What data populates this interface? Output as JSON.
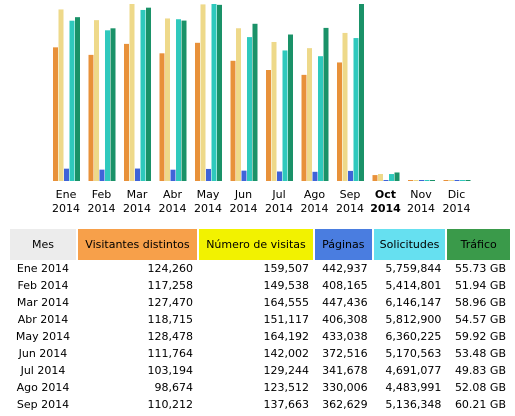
{
  "chart_data": {
    "type": "bar",
    "categories": [
      "Ene 2014",
      "Feb 2014",
      "Mar 2014",
      "Abr 2014",
      "May 2014",
      "Jun 2014",
      "Jul 2014",
      "Ago 2014",
      "Sep 2014",
      "Oct 2014",
      "Nov 2014",
      "Dic 2014"
    ],
    "series": [
      {
        "color": "#e8913a",
        "values": [
          124260,
          117258,
          127470,
          118715,
          128478,
          111764,
          103194,
          98674,
          110212,
          5500,
          0,
          0
        ]
      },
      {
        "color": "#eed98a",
        "values": [
          159507,
          149538,
          164555,
          151117,
          164192,
          142002,
          129244,
          123512,
          137663,
          6500,
          0,
          0
        ]
      },
      {
        "color": "#3f63d8",
        "values": [
          442937,
          408165,
          447436,
          406308,
          433038,
          372516,
          341678,
          330006,
          362629,
          15000,
          0,
          0
        ]
      },
      {
        "color": "#2fc9bd",
        "values": [
          5759844,
          5414801,
          6146147,
          5812900,
          6360225,
          5170563,
          4691077,
          4483991,
          5136348,
          250000,
          0,
          0
        ]
      },
      {
        "color": "#1a9268",
        "values": [
          55.73,
          51.94,
          58.96,
          54.57,
          59.92,
          53.48,
          49.83,
          52.08,
          60.21,
          2.9,
          0,
          0
        ]
      }
    ]
  },
  "table": {
    "header": [
      "Mes",
      "Visitantes distintos",
      "Número de visitas",
      "Páginas",
      "Solicitudes",
      "Tráfico"
    ],
    "header_colors": [
      "#ececec",
      "#f7a04a",
      "#f2f200",
      "#4a7de0",
      "#66e0f0",
      "#3a9a4a"
    ],
    "rows": [
      [
        "Ene 2014",
        "124,260",
        "159,507",
        "442,937",
        "5,759,844",
        "55.73 GB"
      ],
      [
        "Feb 2014",
        "117,258",
        "149,538",
        "408,165",
        "5,414,801",
        "51.94 GB"
      ],
      [
        "Mar 2014",
        "127,470",
        "164,555",
        "447,436",
        "6,146,147",
        "58.96 GB"
      ],
      [
        "Abr 2014",
        "118,715",
        "151,117",
        "406,308",
        "5,812,900",
        "54.57 GB"
      ],
      [
        "May 2014",
        "128,478",
        "164,192",
        "433,038",
        "6,360,225",
        "59.92 GB"
      ],
      [
        "Jun 2014",
        "111,764",
        "142,002",
        "372,516",
        "5,170,563",
        "53.48 GB"
      ],
      [
        "Jul 2014",
        "103,194",
        "129,244",
        "341,678",
        "4,691,077",
        "49.83 GB"
      ],
      [
        "Ago 2014",
        "98,674",
        "123,512",
        "330,006",
        "4,483,991",
        "52.08 GB"
      ],
      [
        "Sep 2014",
        "110,212",
        "137,663",
        "362,629",
        "5,136,348",
        "60.21 GB"
      ]
    ]
  }
}
